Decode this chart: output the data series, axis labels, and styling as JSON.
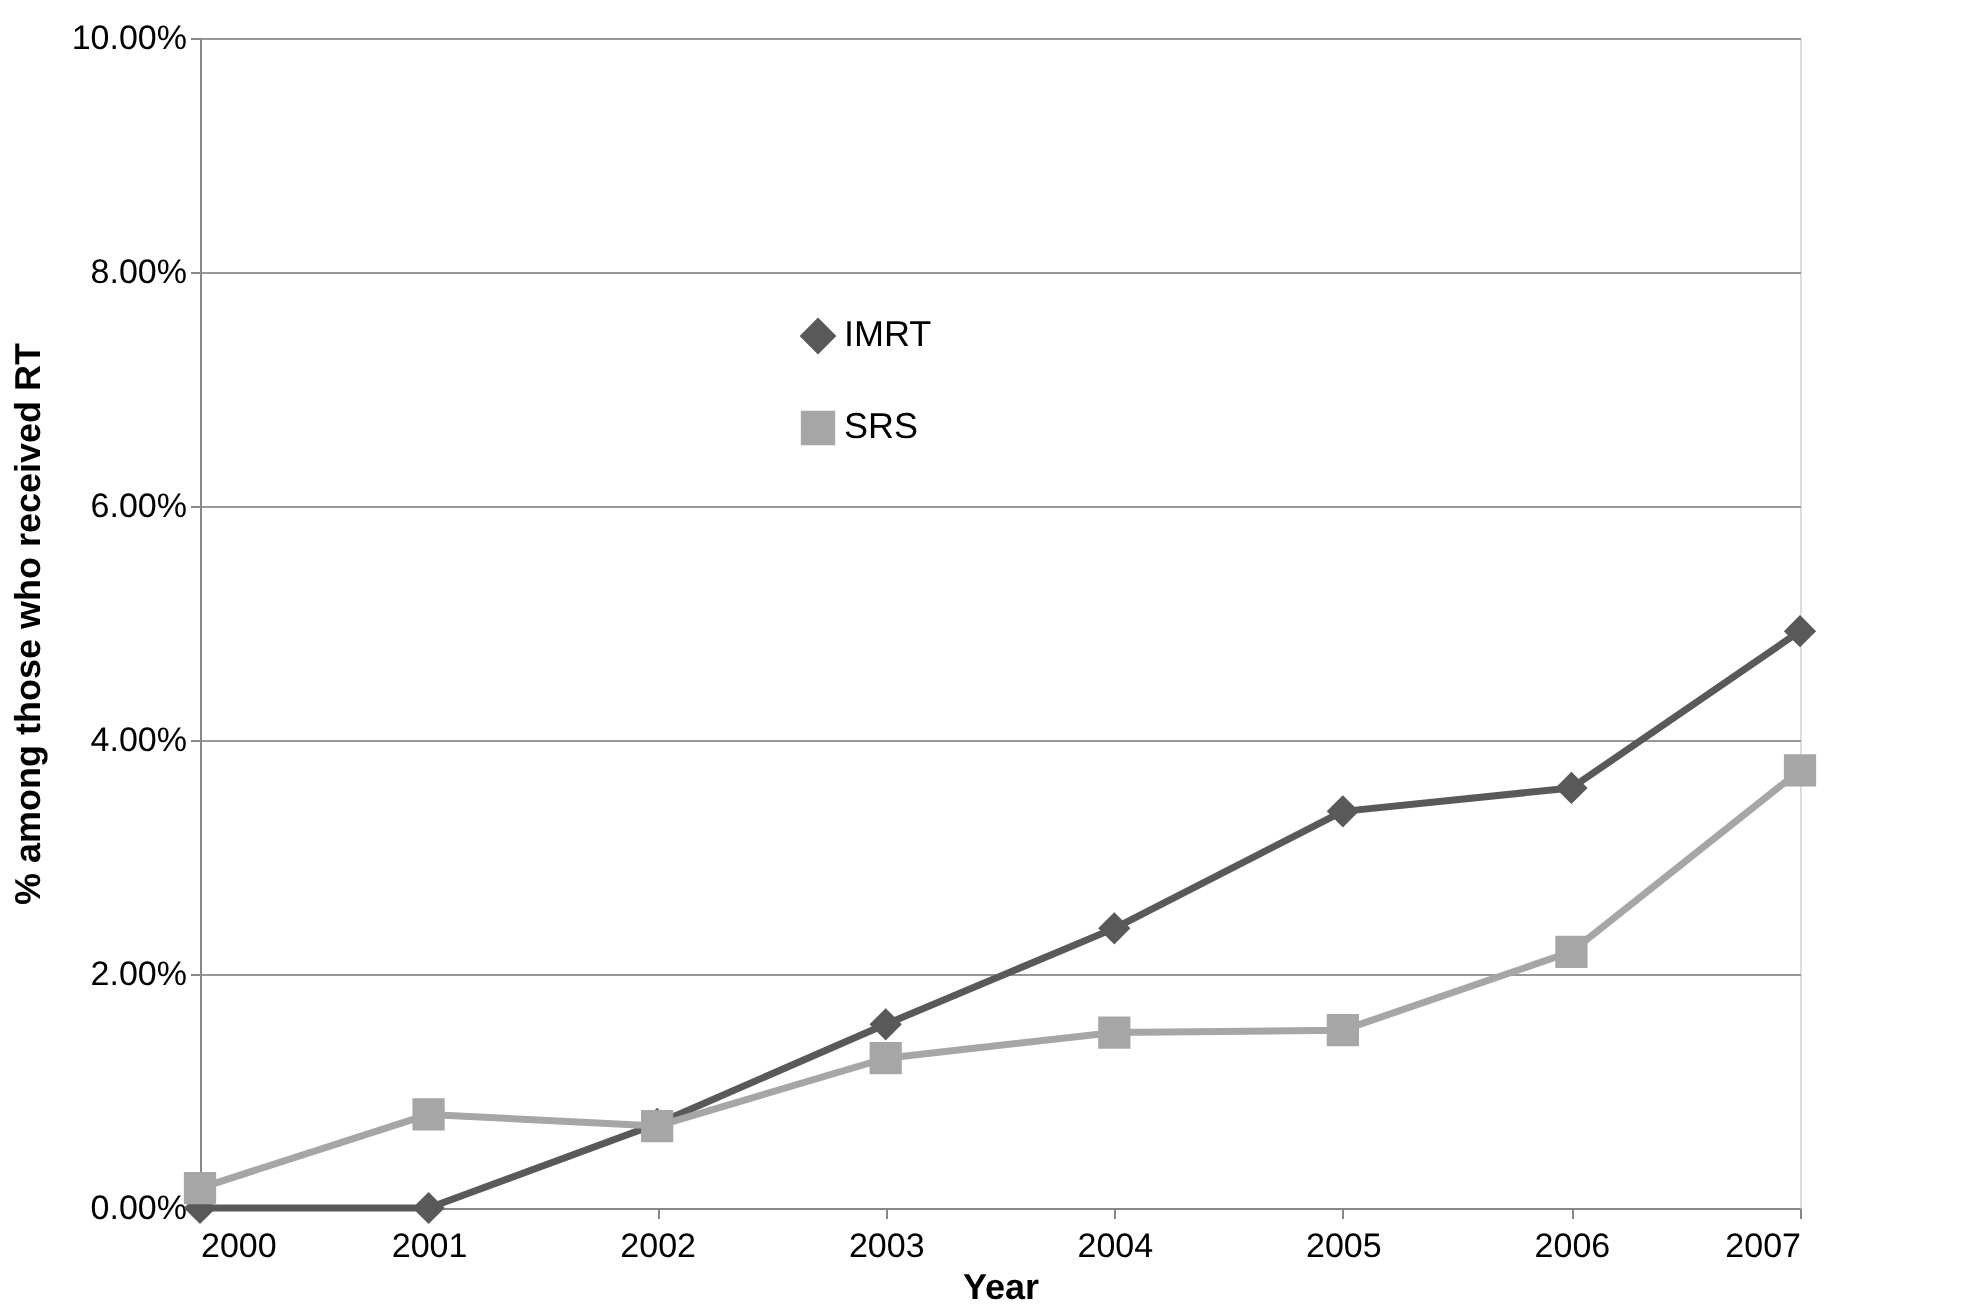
{
  "chart_data": {
    "type": "line",
    "xlabel": "Year",
    "ylabel": "% among those who received RT",
    "categories": [
      "2000",
      "2001",
      "2002",
      "2003",
      "2004",
      "2005",
      "2006",
      "2007"
    ],
    "series": [
      {
        "name": "IMRT",
        "color": "#595959",
        "marker": "diamond",
        "values": [
          0,
          0,
          0.72,
          1.57,
          2.39,
          3.39,
          3.59,
          4.93
        ]
      },
      {
        "name": "SRS",
        "color": "#a6a6a6",
        "marker": "square",
        "values": [
          0.17,
          0.8,
          0.7,
          1.28,
          1.5,
          1.52,
          2.19,
          3.74
        ]
      }
    ],
    "ylim": [
      0,
      10
    ],
    "yticks": [
      {
        "value": 0,
        "label": "0.00%"
      },
      {
        "value": 2,
        "label": "2.00%"
      },
      {
        "value": 4,
        "label": "4.00%"
      },
      {
        "value": 6,
        "label": "6.00%"
      },
      {
        "value": 8,
        "label": "8.00%"
      },
      {
        "value": 10,
        "label": "10.00%"
      }
    ],
    "grid": "y",
    "legend": "top"
  }
}
